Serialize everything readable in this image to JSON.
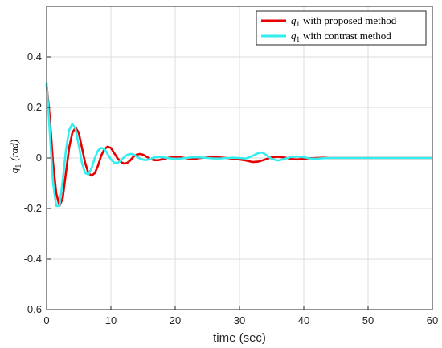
{
  "chart_data": {
    "type": "line",
    "xlabel": "time (sec)",
    "ylabel_base": "q",
    "ylabel_sub": "1",
    "ylabel_unit": "(rad)",
    "xlim": [
      0,
      60
    ],
    "ylim": [
      -0.6,
      0.6
    ],
    "xticks": [
      0,
      10,
      20,
      30,
      40,
      50,
      60
    ],
    "yticks": [
      -0.6,
      -0.4,
      -0.2,
      0,
      0.2,
      0.4
    ],
    "ytick_labels": [
      "-0.6",
      "-0.4",
      "-0.2",
      "0",
      "0.2",
      "0.4"
    ],
    "grid": true,
    "legend_position": "top-right",
    "series": [
      {
        "name": "with proposed method",
        "name_prefix": "q",
        "name_sub": "1",
        "color": "#e60000",
        "x": [
          0,
          0.5,
          1.0,
          1.5,
          2.0,
          2.5,
          3.0,
          3.5,
          4.0,
          4.5,
          5.0,
          5.5,
          6.0,
          6.5,
          7.0,
          7.5,
          8.0,
          8.5,
          9.0,
          9.5,
          10.0,
          10.5,
          11.0,
          11.5,
          12.0,
          12.5,
          13.0,
          13.5,
          14.0,
          14.5,
          15.0,
          15.5,
          16.0,
          16.5,
          17.0,
          17.5,
          18.0,
          19.0,
          20.0,
          21.0,
          22.0,
          23.0,
          24.0,
          25.0,
          26.0,
          27.0,
          28.0,
          29.0,
          30.0,
          31.0,
          32.0,
          33.0,
          34.0,
          35.0,
          36.0,
          37.0,
          38.0,
          39.0,
          40.0,
          41.0,
          42.0,
          43.0,
          44.0,
          45.0,
          50.0,
          55.0,
          60.0
        ],
        "y": [
          0.29,
          0.16,
          -0.02,
          -0.14,
          -0.19,
          -0.16,
          -0.06,
          0.04,
          0.1,
          0.12,
          0.1,
          0.04,
          -0.02,
          -0.06,
          -0.07,
          -0.06,
          -0.03,
          0.01,
          0.035,
          0.045,
          0.04,
          0.02,
          0.0,
          -0.015,
          -0.022,
          -0.02,
          -0.01,
          0.005,
          0.013,
          0.016,
          0.013,
          0.006,
          -0.002,
          -0.007,
          -0.009,
          -0.008,
          -0.005,
          0.001,
          0.004,
          0.002,
          -0.002,
          -0.003,
          0.0,
          0.002,
          0.003,
          0.002,
          0.0,
          -0.003,
          -0.006,
          -0.01,
          -0.016,
          -0.014,
          -0.006,
          0.003,
          0.005,
          0.002,
          -0.004,
          -0.006,
          -0.003,
          -0.001,
          0.0,
          0.001,
          0.0,
          0.0,
          0.0,
          0.0,
          0.0
        ]
      },
      {
        "name": "with contrast method",
        "name_prefix": "q",
        "name_sub": "1",
        "color": "#33eeee",
        "x": [
          0,
          0.5,
          1.0,
          1.5,
          2.0,
          2.5,
          3.0,
          3.5,
          4.0,
          4.5,
          5.0,
          5.5,
          6.0,
          6.5,
          7.0,
          7.5,
          8.0,
          8.5,
          9.0,
          9.5,
          10.0,
          10.5,
          11.0,
          11.5,
          12.0,
          12.5,
          13.0,
          13.5,
          14.0,
          14.5,
          15.0,
          15.5,
          16.0,
          16.5,
          17.0,
          17.5,
          18.0,
          19.0,
          20.0,
          21.0,
          22.0,
          23.0,
          24.0,
          25.0,
          26.0,
          27.0,
          28.0,
          29.0,
          30.0,
          31.0,
          32.0,
          33.0,
          33.5,
          34.0,
          35.0,
          36.0,
          37.0,
          38.0,
          39.0,
          40.0,
          41.0,
          42.0,
          43.0,
          44.0,
          45.0,
          50.0,
          55.0,
          60.0
        ],
        "y": [
          0.3,
          0.1,
          -0.1,
          -0.19,
          -0.19,
          -0.09,
          0.03,
          0.11,
          0.135,
          0.115,
          0.05,
          -0.02,
          -0.06,
          -0.065,
          -0.04,
          0.0,
          0.03,
          0.04,
          0.035,
          0.015,
          -0.005,
          -0.018,
          -0.02,
          -0.012,
          0.002,
          0.012,
          0.016,
          0.014,
          0.006,
          -0.002,
          -0.007,
          -0.008,
          -0.005,
          0.0,
          0.003,
          0.004,
          0.003,
          -0.001,
          -0.003,
          -0.002,
          0.001,
          0.003,
          0.002,
          0.0,
          -0.002,
          -0.002,
          0.0,
          0.001,
          0.0,
          -0.002,
          0.008,
          0.02,
          0.022,
          0.015,
          -0.004,
          -0.01,
          -0.004,
          0.004,
          0.006,
          0.003,
          -0.002,
          -0.003,
          -0.001,
          0.0,
          0.0,
          0.0,
          0.0,
          0.0
        ]
      }
    ]
  }
}
